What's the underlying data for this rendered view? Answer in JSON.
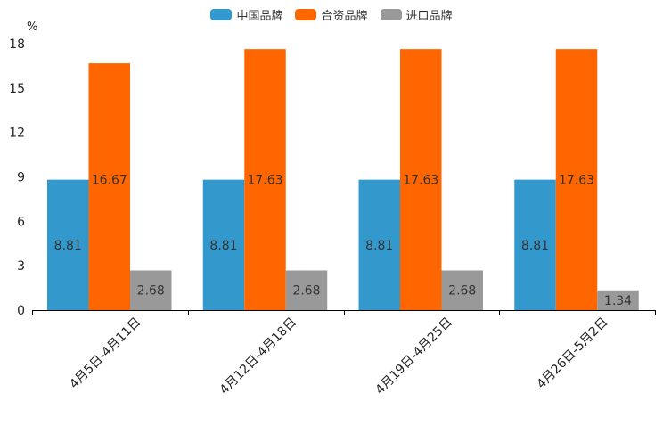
{
  "chart_data": {
    "type": "bar",
    "unit": "%",
    "categories": [
      "4月5日-4月11日",
      "4月12日-4月18日",
      "4月19日-4月25日",
      "4月26日-5月2日"
    ],
    "series": [
      {
        "name": "中国品牌",
        "color": "#3399CC",
        "values": [
          8.81,
          8.81,
          8.81,
          8.81
        ],
        "labels": [
          "8.81",
          "8.81",
          "8.81",
          "8.81"
        ]
      },
      {
        "name": "合资品牌",
        "color": "#FF6600",
        "values": [
          16.67,
          17.63,
          17.63,
          17.63
        ],
        "labels": [
          "16.67",
          "17.63",
          "17.63",
          "17.63"
        ]
      },
      {
        "name": "进口品牌",
        "color": "#999999",
        "values": [
          2.68,
          2.68,
          2.68,
          1.34
        ],
        "labels": [
          "2.68",
          "2.68",
          "2.68",
          "1.34"
        ]
      }
    ],
    "ylim": [
      0,
      18
    ],
    "yticks": [
      "0",
      "3",
      "6",
      "9",
      "12",
      "15",
      "18"
    ],
    "legend_position": "top-center",
    "grid": false
  }
}
